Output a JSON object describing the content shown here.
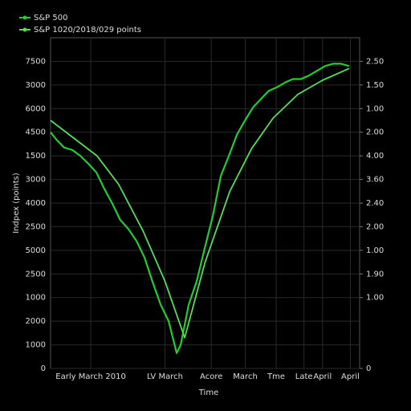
{
  "chart_data": {
    "type": "line",
    "xlabel": "Time",
    "ylabel": "Indpex (points)",
    "xlim": [
      0,
      100
    ],
    "xticks": [
      {
        "value": 13,
        "label": "Early March 2010"
      },
      {
        "value": 37,
        "label": "LV March"
      },
      {
        "value": 52,
        "label": "Acore"
      },
      {
        "value": 63,
        "label": "March"
      },
      {
        "value": 73,
        "label": "Tme"
      },
      {
        "value": 82,
        "label": "Late"
      },
      {
        "value": 88,
        "label": "April"
      },
      {
        "value": 97,
        "label": "April"
      }
    ],
    "ylim": [
      0,
      14
    ],
    "yticks": [
      0,
      {
        "value": 1,
        "label": "1000"
      },
      {
        "value": 2,
        "label": "2000"
      },
      {
        "value": 3,
        "label": "1000"
      },
      {
        "value": 4,
        "label": "2500"
      },
      {
        "value": 5,
        "label": "5000"
      },
      {
        "value": 6,
        "label": "2500"
      },
      {
        "value": 7,
        "label": "4000"
      },
      {
        "value": 8,
        "label": "3000"
      },
      {
        "value": 9,
        "label": "1500"
      },
      {
        "value": 10,
        "label": "4500"
      },
      {
        "value": 11,
        "label": "6000"
      },
      {
        "value": 12,
        "label": "3000"
      },
      {
        "value": 13,
        "label": "7500"
      }
    ],
    "y2lim": [
      0,
      14
    ],
    "y2ticks": [
      0,
      {
        "value": 3,
        "label": "1.00"
      },
      {
        "value": 4,
        "label": "1.90"
      },
      {
        "value": 5,
        "label": "1.00"
      },
      {
        "value": 6,
        "label": "2.00"
      },
      {
        "value": 7,
        "label": "2.40"
      },
      {
        "value": 8,
        "label": "3.60"
      },
      {
        "value": 9,
        "label": "4.00"
      },
      {
        "value": 10,
        "label": "2.00"
      },
      {
        "value": 11,
        "label": "1.00"
      },
      {
        "value": 12,
        "label": "1.50"
      },
      {
        "value": 13,
        "label": "2.50"
      }
    ],
    "grid": true,
    "legend": "upper left",
    "series": [
      {
        "name": "S&P 500",
        "color": "#22cc33",
        "x": [
          0,
          1.8,
          4.4,
          7.0,
          9.6,
          12.2,
          14.8,
          17.4,
          19.9,
          22.5,
          25.2,
          27.8,
          30.4,
          32.9,
          35.6,
          38.2,
          40.8,
          42.1,
          44.7,
          47.3,
          49.9,
          52.5,
          55.1,
          57.7,
          60.3,
          62.9,
          65.5,
          68.0,
          70.6,
          73.2,
          75.8,
          78.4,
          81.0,
          83.6,
          86.2,
          88.8,
          91.4,
          94.0,
          96.6
        ],
        "values": [
          10.0,
          9.7,
          9.35,
          9.25,
          9.0,
          8.67,
          8.3,
          7.6,
          7.0,
          6.3,
          5.9,
          5.4,
          4.7,
          3.7,
          2.7,
          2.0,
          0.65,
          1.0,
          2.7,
          3.7,
          5.1,
          6.45,
          8.15,
          9.0,
          9.9,
          10.5,
          11.05,
          11.4,
          11.75,
          11.9,
          12.1,
          12.25,
          12.25,
          12.4,
          12.6,
          12.8,
          12.9,
          12.9,
          12.8
        ]
      },
      {
        "name": "S&P 1020/2018/029 points",
        "color": "#55dd55",
        "x": [
          0,
          8,
          15,
          22,
          30,
          37,
          43.4,
          50,
          58,
          65,
          72,
          80,
          88,
          96.6
        ],
        "values": [
          10.5,
          9.7,
          9.0,
          7.8,
          5.8,
          3.7,
          1.3,
          4.5,
          7.5,
          9.3,
          10.6,
          11.6,
          12.2,
          12.7
        ]
      }
    ]
  }
}
